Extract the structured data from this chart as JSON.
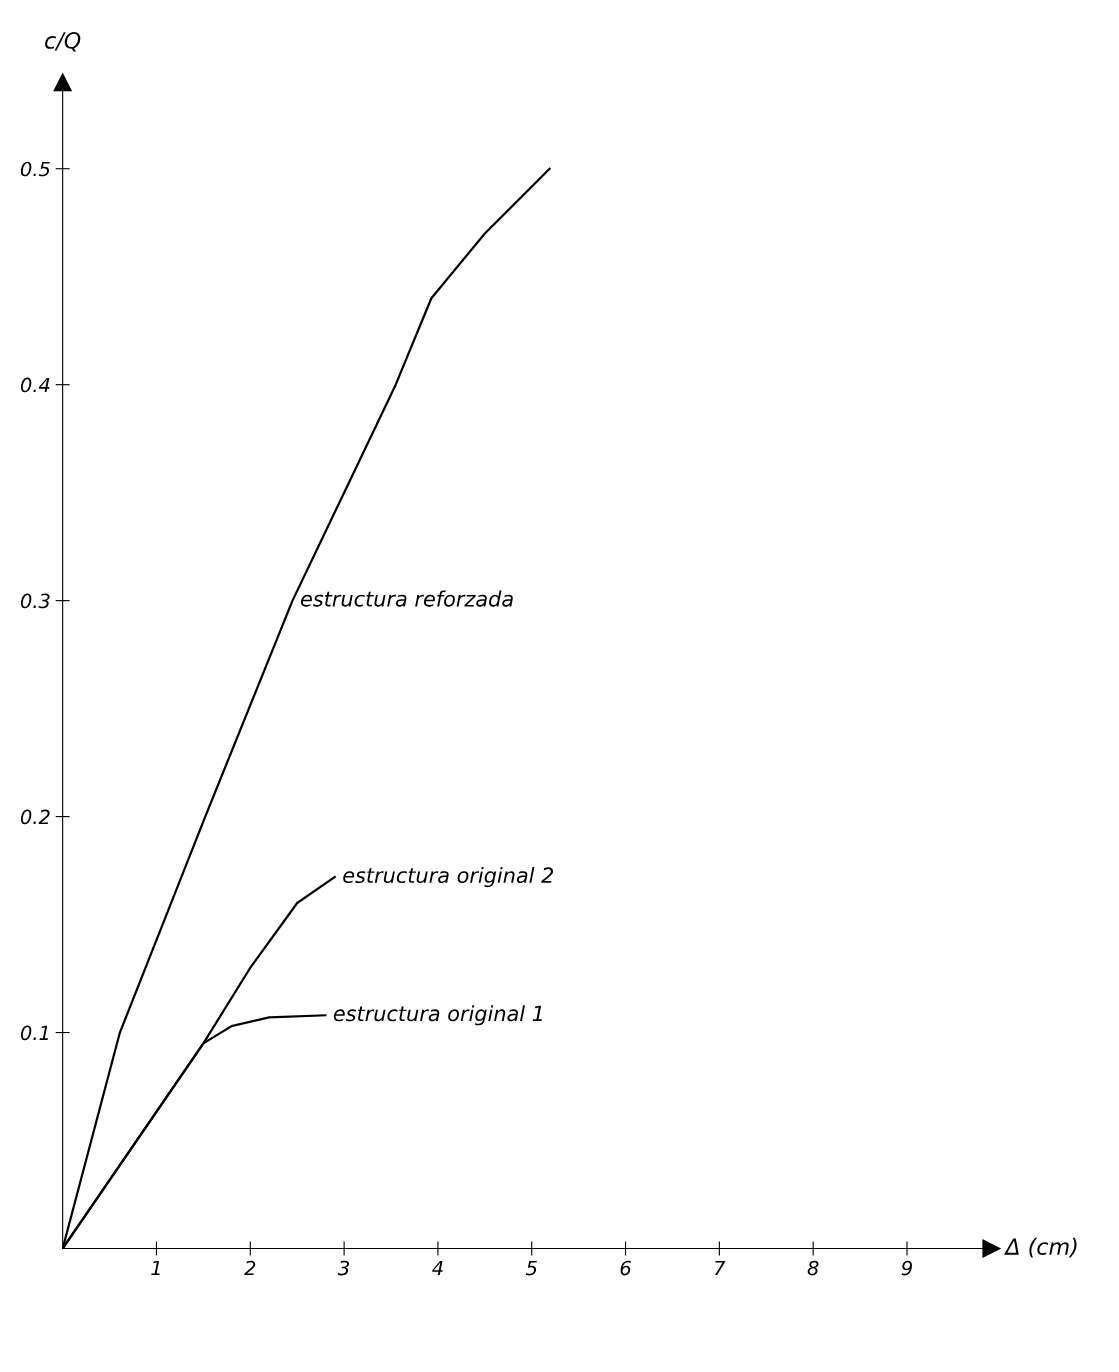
{
  "chart_data": {
    "type": "line",
    "xlabel": "Δ (cm)",
    "ylabel": "c/Q",
    "xlim": [
      0,
      9.9
    ],
    "ylim": [
      0,
      0.54
    ],
    "xticks": [
      1,
      2,
      3,
      4,
      5,
      6,
      7,
      8,
      9
    ],
    "yticks": [
      0.1,
      0.2,
      0.3,
      0.4,
      0.5
    ],
    "grid": false,
    "legend": false,
    "marker": "none",
    "line_style": "solid",
    "series": [
      {
        "name": "estructura reforzada",
        "color": "#000000",
        "x": [
          0,
          0.61,
          1.52,
          2.45,
          3.0,
          3.55,
          3.93,
          4.5,
          5.19
        ],
        "values": [
          0,
          0.1,
          0.2,
          0.3,
          0.35,
          0.4,
          0.44,
          0.47,
          0.5
        ]
      },
      {
        "name": "estructura original 2",
        "color": "#000000",
        "x": [
          0,
          1.5,
          2.0,
          2.5,
          2.9
        ],
        "values": [
          0,
          0.095,
          0.13,
          0.16,
          0.172
        ]
      },
      {
        "name": "estructura original 1",
        "color": "#000000",
        "x": [
          0,
          1.5,
          1.8,
          2.2,
          2.8
        ],
        "values": [
          0,
          0.095,
          0.103,
          0.107,
          0.108
        ]
      }
    ]
  }
}
